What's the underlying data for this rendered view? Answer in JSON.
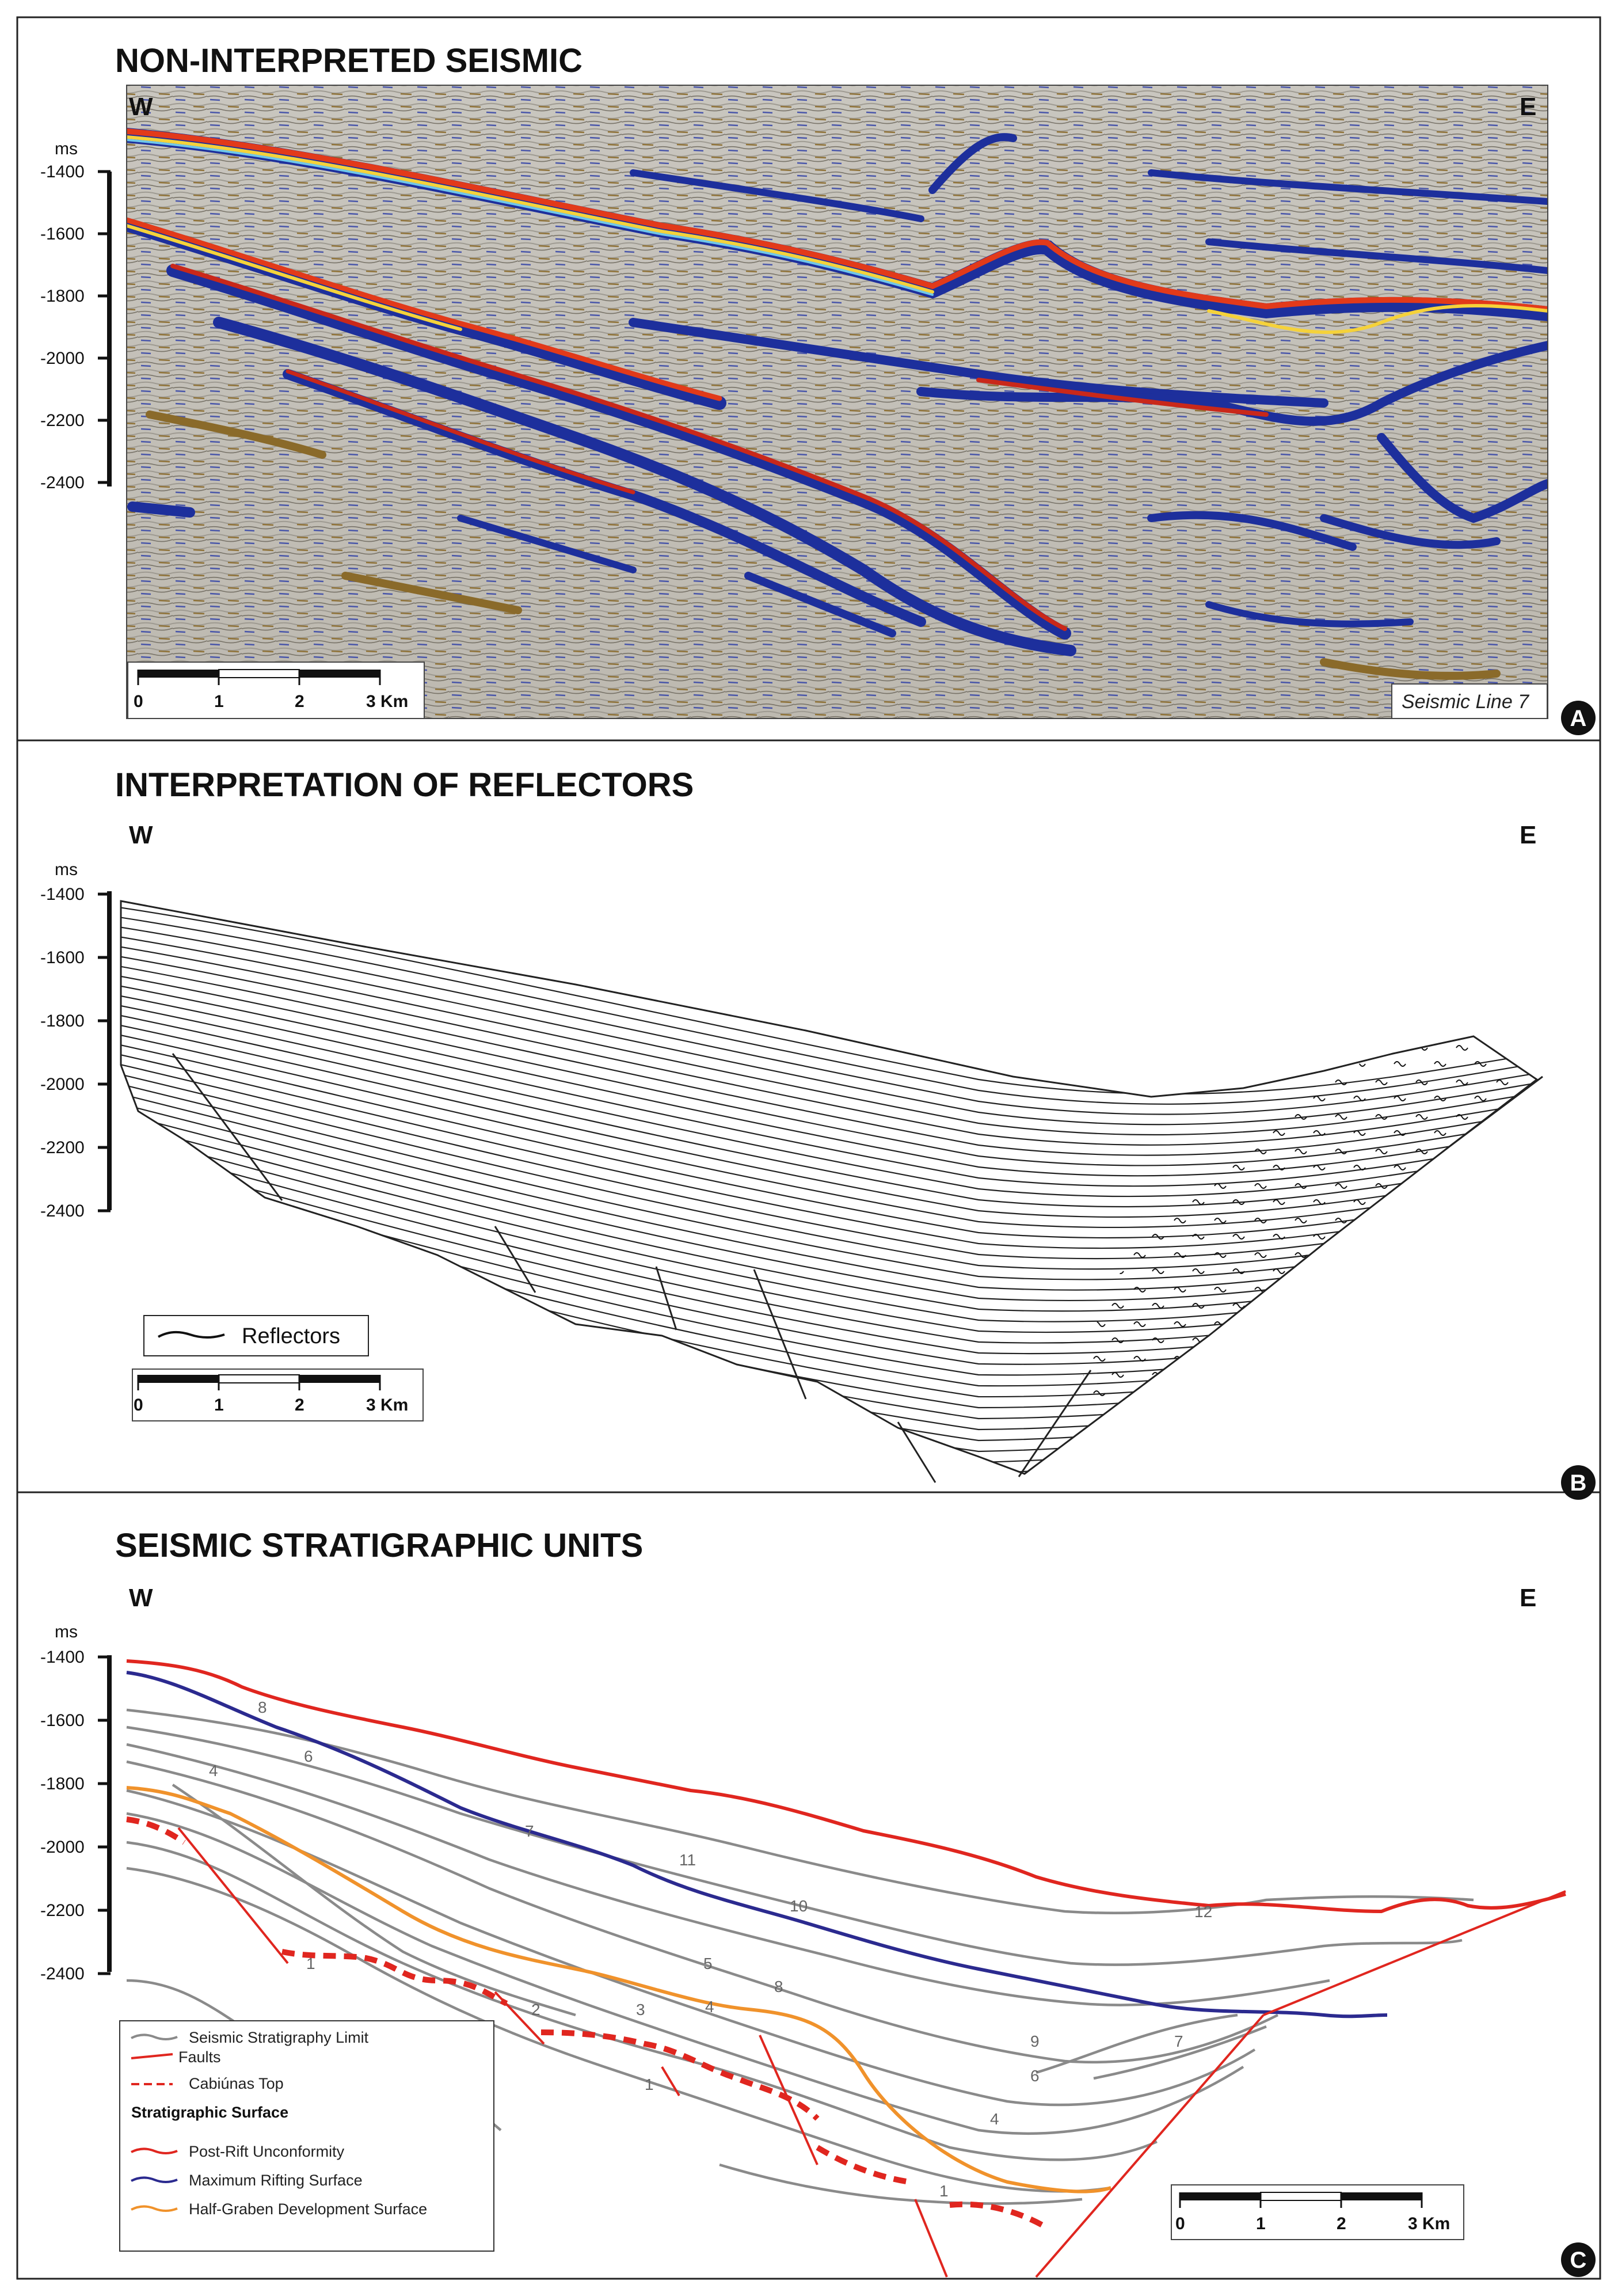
{
  "panels": [
    {
      "id": "A",
      "title": "NON-INTERPRETED SEISMIC",
      "west": "W",
      "east": "E",
      "unit": "ms",
      "ticks": [
        "-1400",
        "-1600",
        "-1800",
        "-2000",
        "-2200",
        "-2400"
      ],
      "scale": [
        "0",
        "1",
        "2",
        "3 Km"
      ],
      "line_label": "Seismic Line 7",
      "badge": "A"
    },
    {
      "id": "B",
      "title": "INTERPRETATION OF REFLECTORS",
      "west": "W",
      "east": "E",
      "unit": "ms",
      "ticks": [
        "-1400",
        "-1600",
        "-1800",
        "-2000",
        "-2200",
        "-2400"
      ],
      "scale": [
        "0",
        "1",
        "2",
        "3 Km"
      ],
      "legend": "Reflectors",
      "badge": "B"
    },
    {
      "id": "C",
      "title": "SEISMIC STRATIGRAPHIC UNITS",
      "west": "W",
      "east": "E",
      "unit": "ms",
      "ticks": [
        "-1400",
        "-1600",
        "-1800",
        "-2000",
        "-2200",
        "-2400"
      ],
      "scale": [
        "0",
        "1",
        "2",
        "3 Km"
      ],
      "legend": {
        "items": [
          "Seismic Stratigraphy Limit",
          "Faults",
          "Cabiúnas Top"
        ],
        "header": "Stratigraphic Surface",
        "surfaces": [
          "Post-Rift Unconformity",
          "Maximum Rifting Surface",
          "Half-Graben Development Surface"
        ]
      },
      "unit_labels": [
        "8",
        "6",
        "4",
        "7",
        "11",
        "10",
        "12",
        "1",
        "5",
        "8",
        "4",
        "2",
        "3",
        "9",
        "7",
        "6",
        "1",
        "4",
        "1"
      ],
      "badge": "C"
    }
  ],
  "colors": {
    "post_rift": "#e0261f",
    "max_rifting": "#2b2a8f",
    "half_graben": "#f0922b",
    "fault": "#e0261f",
    "strat_limit": "#8a8a8a"
  }
}
